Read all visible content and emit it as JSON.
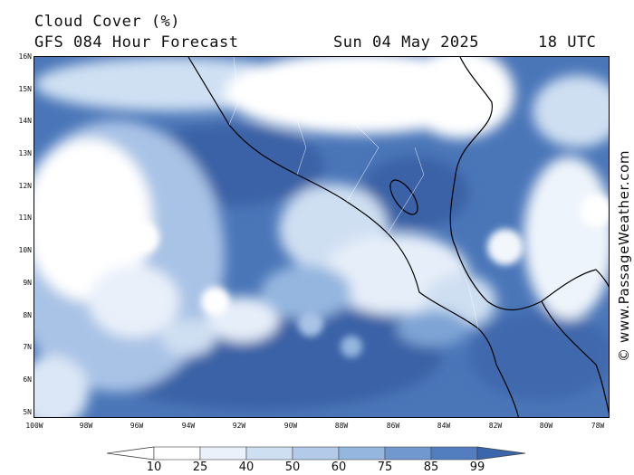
{
  "header": {
    "title": "Cloud Cover (%)",
    "model": "GFS 084 Hour Forecast",
    "date": "Sun 04 May 2025",
    "time": "18 UTC"
  },
  "credit": "© www.PassageWeather.com",
  "axes": {
    "lat_labels": [
      "16N",
      "15N",
      "14N",
      "13N",
      "12N",
      "11N",
      "10N",
      "9N",
      "8N",
      "7N",
      "6N",
      "5N"
    ],
    "lon_labels": [
      "100W",
      "98W",
      "96W",
      "94W",
      "92W",
      "90W",
      "88W",
      "86W",
      "84W",
      "82W",
      "80W",
      "78W"
    ]
  },
  "legend": {
    "levels": [
      "10",
      "25",
      "40",
      "50",
      "60",
      "75",
      "85",
      "99"
    ],
    "colors": [
      "#ffffff",
      "#eaf1fa",
      "#cfdff2",
      "#b3cbe9",
      "#94b6df",
      "#7199d0",
      "#527ec0",
      "#3c66ac",
      "#2f5596"
    ]
  },
  "map": {
    "region": "Central America / Eastern Pacific",
    "lat_range": [
      5,
      16
    ],
    "lon_range": [
      -100,
      -77.5
    ]
  }
}
